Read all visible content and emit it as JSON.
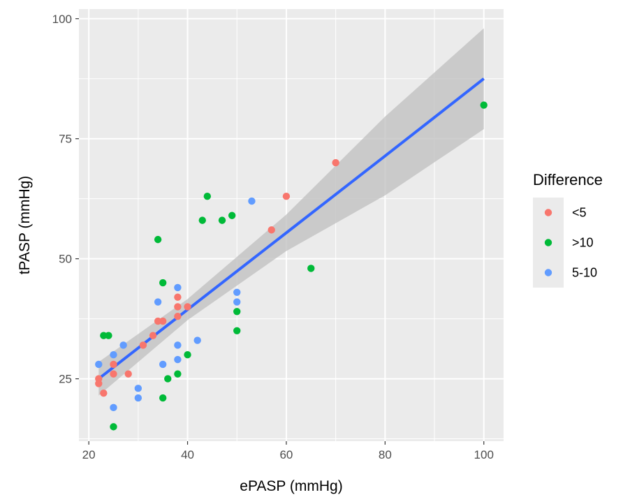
{
  "chart_data": {
    "type": "scatter",
    "title": "",
    "xlabel": "ePASP (mmHg)",
    "ylabel": "tPASP (mmHg)",
    "xlim": [
      18,
      104
    ],
    "ylim": [
      12,
      102
    ],
    "xticks": [
      20,
      40,
      60,
      80,
      100
    ],
    "yticks": [
      25,
      50,
      75,
      100
    ],
    "grid": true,
    "legend": {
      "title": "Difference",
      "position": "right",
      "entries": [
        {
          "label": "<5",
          "color": "#F8766D"
        },
        {
          "label": ">10",
          "color": "#00BA38"
        },
        {
          "label": "5-10",
          "color": "#619CFF"
        }
      ]
    },
    "series": [
      {
        "name": "<5",
        "color": "#F8766D",
        "points": [
          [
            22,
            24
          ],
          [
            22,
            25
          ],
          [
            23,
            22
          ],
          [
            25,
            26
          ],
          [
            25,
            28
          ],
          [
            28,
            26
          ],
          [
            31,
            32
          ],
          [
            33,
            34
          ],
          [
            34,
            37
          ],
          [
            35,
            37
          ],
          [
            38,
            38
          ],
          [
            38,
            40
          ],
          [
            38,
            42
          ],
          [
            40,
            40
          ],
          [
            57,
            56
          ],
          [
            60,
            63
          ],
          [
            70,
            70
          ]
        ]
      },
      {
        "name": ">10",
        "color": "#00BA38",
        "points": [
          [
            23,
            34
          ],
          [
            24,
            34
          ],
          [
            25,
            15
          ],
          [
            34,
            54
          ],
          [
            35,
            45
          ],
          [
            35,
            21
          ],
          [
            36,
            25
          ],
          [
            38,
            26
          ],
          [
            40,
            30
          ],
          [
            43,
            58
          ],
          [
            44,
            63
          ],
          [
            47,
            58
          ],
          [
            49,
            59
          ],
          [
            50,
            39
          ],
          [
            50,
            35
          ],
          [
            65,
            48
          ],
          [
            100,
            82
          ]
        ]
      },
      {
        "name": "5-10",
        "color": "#619CFF",
        "points": [
          [
            22,
            28
          ],
          [
            25,
            30
          ],
          [
            25,
            19
          ],
          [
            27,
            32
          ],
          [
            30,
            23
          ],
          [
            30,
            21
          ],
          [
            34,
            41
          ],
          [
            35,
            28
          ],
          [
            38,
            44
          ],
          [
            38,
            32
          ],
          [
            38,
            29
          ],
          [
            42,
            33
          ],
          [
            50,
            43
          ],
          [
            50,
            41
          ],
          [
            53,
            62
          ]
        ]
      }
    ],
    "regression": {
      "color": "#3366FF",
      "band_color": "#bfbfbf",
      "x": [
        22,
        40,
        60,
        80,
        100
      ],
      "fit": [
        25,
        39.4,
        55.4,
        71.4,
        87.5
      ],
      "lower": [
        21.5,
        37.2,
        51.6,
        63.2,
        77
      ],
      "upper": [
        28.5,
        41.6,
        59.2,
        79.6,
        98
      ]
    }
  }
}
